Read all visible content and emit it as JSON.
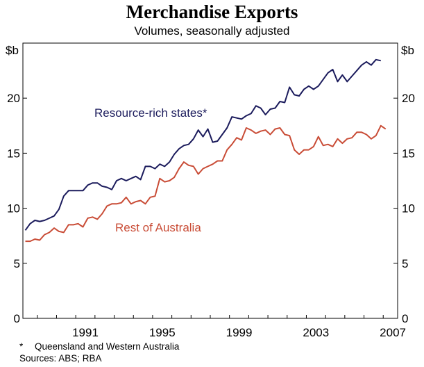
{
  "header": {
    "title": "Merchandise Exports",
    "subtitle": "Volumes, seasonally adjusted"
  },
  "notes": {
    "footnote_mark": "*",
    "footnote": "Queensland and Western Australia",
    "sources": "Sources: ABS; RBA"
  },
  "chart_data": {
    "type": "line",
    "title": "Merchandise Exports",
    "subtitle": "Volumes, seasonally adjusted",
    "ylabel_left": "$b",
    "ylabel_right": "$b",
    "ylim": [
      0,
      25
    ],
    "yticks": [
      0,
      5,
      10,
      15,
      20
    ],
    "xlim": [
      1988.25,
      2007.75
    ],
    "xticks": [
      1991,
      1995,
      1999,
      2003,
      2007
    ],
    "x_start": 1988.375,
    "x_step": 0.25,
    "grid": false,
    "series": [
      {
        "name": "Resource-rich states*",
        "color": "#1b1b5c",
        "values": [
          8.0,
          8.6,
          8.9,
          8.8,
          8.9,
          9.1,
          9.3,
          9.9,
          11.1,
          11.6,
          11.6,
          11.6,
          11.6,
          12.1,
          12.3,
          12.3,
          12.0,
          11.9,
          11.7,
          12.5,
          12.7,
          12.5,
          12.7,
          12.9,
          12.6,
          13.8,
          13.8,
          13.6,
          14.0,
          13.8,
          14.2,
          14.9,
          15.4,
          15.7,
          15.8,
          16.3,
          17.1,
          16.5,
          17.2,
          16.0,
          16.1,
          16.7,
          17.3,
          18.3,
          18.2,
          18.1,
          18.4,
          18.6,
          19.3,
          19.1,
          18.5,
          19.0,
          19.1,
          19.7,
          19.6,
          21.0,
          20.3,
          20.2,
          20.8,
          21.1,
          20.8,
          21.1,
          21.7,
          22.3,
          22.6,
          21.5,
          22.1,
          21.5,
          22.0,
          22.5,
          23.0,
          23.3,
          23.0,
          23.5,
          23.4
        ]
      },
      {
        "name": "Rest of Australia",
        "color": "#c94c36",
        "values": [
          7.0,
          7.0,
          7.2,
          7.1,
          7.6,
          7.8,
          8.2,
          7.9,
          7.8,
          8.5,
          8.5,
          8.6,
          8.3,
          9.1,
          9.2,
          9.0,
          9.5,
          10.2,
          10.4,
          10.4,
          10.5,
          11.0,
          10.4,
          10.6,
          10.7,
          10.4,
          11.0,
          11.1,
          12.7,
          12.4,
          12.5,
          12.8,
          13.6,
          14.2,
          13.9,
          13.8,
          13.1,
          13.6,
          13.8,
          14.0,
          14.3,
          14.3,
          15.3,
          15.8,
          16.4,
          16.2,
          17.3,
          17.1,
          16.8,
          17.0,
          17.1,
          16.7,
          17.2,
          17.3,
          16.7,
          16.6,
          15.3,
          14.9,
          15.3,
          15.3,
          15.6,
          16.5,
          15.7,
          15.8,
          15.6,
          16.3,
          15.9,
          16.3,
          16.4,
          16.9,
          16.9,
          16.7,
          16.3,
          16.6,
          17.5,
          17.2
        ]
      }
    ],
    "annotations": [
      {
        "text": "Resource-rich states*",
        "series": 0
      },
      {
        "text": "Rest of Australia",
        "series": 1
      }
    ]
  }
}
